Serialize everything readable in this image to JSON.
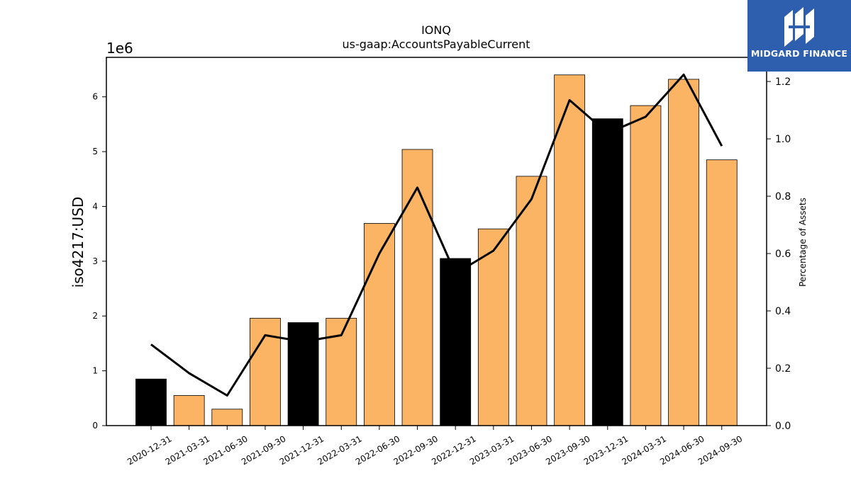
{
  "chart_data": {
    "type": "bar",
    "title": "IONQ",
    "subtitle": "us-gaap:AccountsPayableCurrent",
    "ylabel": "iso4217:USD",
    "y2label": "Percentage of Assets",
    "y_offset_label": "1e6",
    "categories": [
      "2020-12-31",
      "2021-03-31",
      "2021-06-30",
      "2021-09-30",
      "2021-12-31",
      "2022-03-31",
      "2022-06-30",
      "2022-09-30",
      "2022-12-31",
      "2023-03-31",
      "2023-06-30",
      "2023-09-30",
      "2023-12-31",
      "2024-03-31",
      "2024-06-30",
      "2024-09-30"
    ],
    "series": [
      {
        "type": "bar",
        "values": [
          0.85,
          0.55,
          0.3,
          1.96,
          1.88,
          1.96,
          3.69,
          5.04,
          3.05,
          3.59,
          4.55,
          6.4,
          5.6,
          5.84,
          6.32,
          4.85
        ]
      },
      {
        "type": "line",
        "axis": "right",
        "values": [
          0.283,
          0.183,
          0.105,
          0.315,
          0.293,
          0.315,
          0.6,
          0.83,
          0.53,
          0.61,
          0.79,
          1.135,
          1.02,
          1.077,
          1.224,
          0.975
        ]
      }
    ],
    "bar_colors": [
      "#000000",
      "#fbb364",
      "#fbb364",
      "#fbb364",
      "#000000",
      "#fbb364",
      "#fbb364",
      "#fbb364",
      "#000000",
      "#fbb364",
      "#fbb364",
      "#fbb364",
      "#000000",
      "#fbb364",
      "#fbb364",
      "#fbb364"
    ],
    "yticks": [
      "0",
      "1",
      "2",
      "3",
      "4",
      "5",
      "6"
    ],
    "y2ticks": [
      "0.0",
      "0.2",
      "0.4",
      "0.6",
      "0.8",
      "1.0",
      "1.2"
    ],
    "ylim": [
      0,
      6.72
    ],
    "y2lim": [
      0,
      1.2842
    ],
    "line_color": "#000000"
  },
  "logo": {
    "text": "MIDGARD FINANCE",
    "icon": "midgard-logo-icon",
    "background": "#2d5fae"
  }
}
